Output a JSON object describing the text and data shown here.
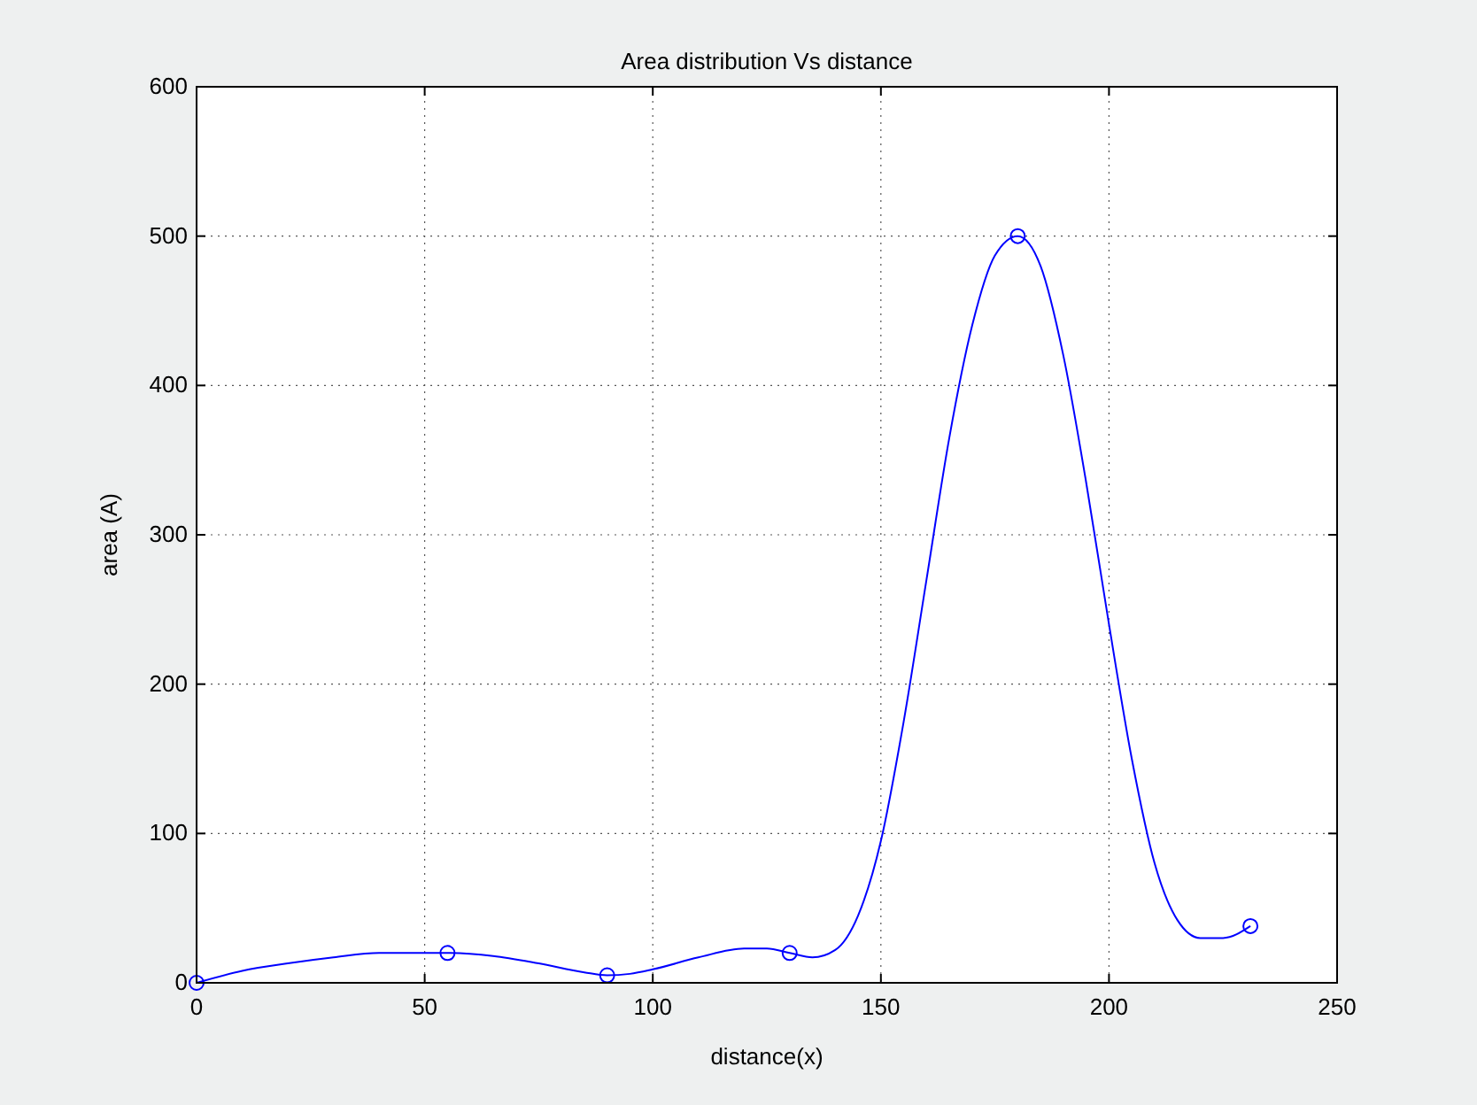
{
  "chart_data": {
    "type": "line",
    "title": "Area distribution Vs distance",
    "xlabel": "distance(x)",
    "ylabel": "area (A)",
    "xlim": [
      0,
      250
    ],
    "xticks": [
      0,
      50,
      100,
      150,
      200,
      250
    ],
    "ylim": [
      0,
      600
    ],
    "yticks": [
      0,
      100,
      200,
      300,
      400,
      500,
      600
    ],
    "grid": true,
    "series": [
      {
        "color": "#0000ff",
        "marker": "none",
        "line_style": "solid",
        "x": [
          0,
          10,
          20,
          30,
          40,
          55,
          65,
          75,
          85,
          90,
          95,
          100,
          110,
          120,
          125,
          130,
          135,
          140,
          145,
          150,
          155,
          160,
          165,
          170,
          175,
          180,
          185,
          190,
          195,
          200,
          205,
          210,
          215,
          220,
          225,
          231
        ],
        "values": [
          0,
          8,
          13,
          17,
          20,
          20,
          18,
          13,
          7,
          5,
          6,
          9,
          17,
          23,
          23,
          20,
          17,
          22,
          45,
          95,
          175,
          270,
          365,
          440,
          487,
          500,
          480,
          420,
          335,
          240,
          150,
          80,
          42,
          30,
          30,
          38
        ]
      },
      {
        "type": "scatter",
        "color": "#0000ff",
        "marker": "circle",
        "x": [
          0,
          55,
          90,
          130,
          180,
          231
        ],
        "values": [
          0,
          20,
          5,
          20,
          500,
          38
        ]
      }
    ]
  }
}
